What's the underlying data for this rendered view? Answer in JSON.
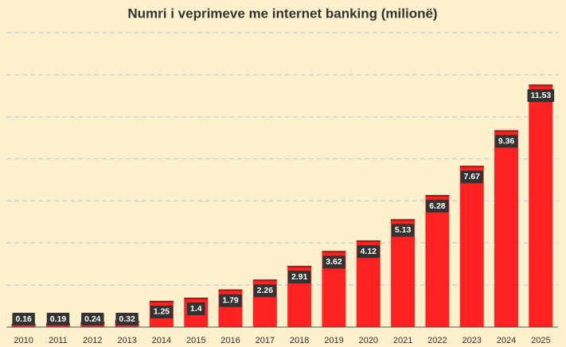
{
  "chart_data": {
    "type": "bar",
    "title": "Numri i veprimeve me internet banking (milionë)",
    "categories": [
      "2010",
      "2011",
      "2012",
      "2013",
      "2014",
      "2015",
      "2016",
      "2017",
      "2018",
      "2019",
      "2020",
      "2021",
      "2022",
      "2023",
      "2024",
      "2025"
    ],
    "values": [
      0.16,
      0.19,
      0.24,
      0.32,
      1.25,
      1.4,
      1.79,
      2.26,
      2.91,
      3.62,
      4.12,
      5.13,
      6.28,
      7.67,
      9.36,
      11.53
    ],
    "color": "#ff2222",
    "ylim": [
      0,
      14
    ],
    "yticks": [
      2,
      4,
      6,
      8,
      10,
      12,
      14
    ],
    "grid": true
  }
}
